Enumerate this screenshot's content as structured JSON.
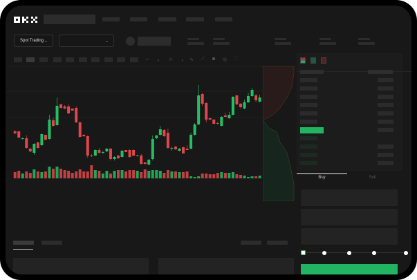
{
  "header": {
    "logo": "OKX",
    "market_select": "Spot Trading"
  },
  "trade_tabs": {
    "buy": "Buy",
    "sell": "Sell"
  },
  "colors": {
    "up": "#22c063",
    "down": "#e0464b",
    "background": "#181818",
    "accent": "#22b561"
  },
  "toolbar_icons": [
    "indicator-icon",
    "chevron-down-icon",
    "candle-type-icon",
    "chevron-down-icon",
    "line-icon",
    "ruler-icon",
    "camera-icon",
    "settings-icon",
    "fullscreen-icon"
  ],
  "orderbook_icons": [
    "both-sides-icon",
    "bids-only-icon",
    "asks-only-icon"
  ],
  "order_slider": {
    "percent": 0
  },
  "chart_data": {
    "type": "candlestick",
    "candles": [
      [
        68,
        70,
        64,
        65
      ],
      [
        68,
        69,
        58,
        59
      ],
      [
        57,
        59,
        56,
        58
      ],
      [
        58,
        62,
        43,
        44
      ],
      [
        43,
        44,
        38,
        39
      ],
      [
        37,
        51,
        34,
        50
      ],
      [
        52,
        53,
        43,
        44
      ],
      [
        48,
        65,
        47,
        64
      ],
      [
        63,
        63,
        55,
        56
      ],
      [
        57,
        92,
        56,
        85
      ],
      [
        84,
        88,
        75,
        76
      ],
      [
        77,
        117,
        76,
        105
      ],
      [
        107,
        108,
        101,
        102
      ],
      [
        104,
        106,
        100,
        101
      ],
      [
        104,
        107,
        93,
        94
      ],
      [
        101,
        101,
        98,
        98
      ],
      [
        102,
        104,
        80,
        81
      ],
      [
        81,
        82,
        59,
        60
      ],
      [
        63,
        64,
        60,
        61
      ],
      [
        61,
        62,
        30,
        33
      ],
      [
        33,
        35,
        31,
        32
      ],
      [
        33,
        42,
        32,
        41
      ],
      [
        41,
        44,
        36,
        37
      ],
      [
        38,
        40,
        35,
        38
      ],
      [
        39,
        44,
        38,
        43
      ],
      [
        43,
        44,
        26,
        28
      ],
      [
        28,
        32,
        26,
        31
      ],
      [
        33,
        34,
        28,
        29
      ],
      [
        31,
        41,
        30,
        40
      ],
      [
        41,
        41,
        38,
        38
      ],
      [
        41,
        42,
        30,
        31
      ],
      [
        41,
        42,
        32,
        33
      ],
      [
        33,
        34,
        32,
        33
      ],
      [
        33,
        35,
        20,
        21
      ],
      [
        23,
        24,
        20,
        21
      ],
      [
        20,
        28,
        19,
        27
      ],
      [
        28,
        62,
        26,
        57
      ],
      [
        58,
        63,
        57,
        62
      ],
      [
        63,
        76,
        62,
        71
      ],
      [
        70,
        71,
        60,
        61
      ],
      [
        66,
        72,
        43,
        44
      ],
      [
        43,
        46,
        40,
        44
      ],
      [
        46,
        47,
        41,
        42
      ],
      [
        40,
        44,
        39,
        43
      ],
      [
        45,
        46,
        36,
        36
      ],
      [
        43,
        48,
        41,
        41
      ],
      [
        43,
        66,
        42,
        63
      ],
      [
        63,
        80,
        62,
        78
      ],
      [
        78,
        135,
        77,
        120
      ],
      [
        122,
        124,
        105,
        108
      ],
      [
        109,
        110,
        81,
        85
      ],
      [
        87,
        88,
        84,
        85
      ],
      [
        85,
        86,
        78,
        79
      ],
      [
        80,
        82,
        78,
        79
      ],
      [
        76,
        90,
        75,
        89
      ],
      [
        91,
        95,
        89,
        89
      ],
      [
        87,
        96,
        86,
        92
      ],
      [
        92,
        119,
        91,
        118
      ],
      [
        120,
        121,
        106,
        107
      ],
      [
        108,
        109,
        101,
        103
      ],
      [
        101,
        114,
        100,
        110
      ],
      [
        110,
        124,
        109,
        119
      ],
      [
        119,
        131,
        118,
        128
      ],
      [
        120,
        122,
        110,
        113
      ],
      [
        111,
        121,
        110,
        117
      ]
    ],
    "volume": [
      9,
      11,
      7,
      10,
      8,
      13,
      10,
      9,
      10,
      17,
      14,
      17,
      14,
      12,
      11,
      8,
      10,
      13,
      10,
      10,
      19,
      12,
      11,
      7,
      11,
      7,
      11,
      12,
      12,
      10,
      12,
      12,
      11,
      9,
      13,
      11,
      12,
      12,
      11,
      8,
      12,
      10,
      10,
      9,
      9,
      10,
      3,
      2,
      3,
      7,
      7,
      6,
      6,
      8,
      9,
      8,
      8,
      9,
      6,
      5,
      4,
      2,
      3,
      3,
      4
    ],
    "grid": true
  }
}
